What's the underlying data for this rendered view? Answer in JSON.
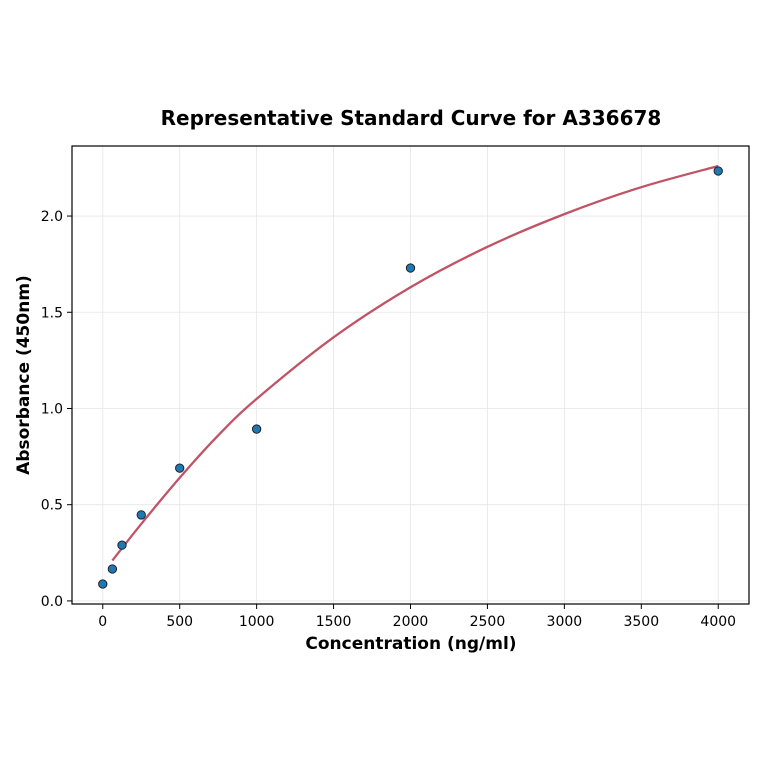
{
  "chart_data": {
    "type": "scatter",
    "title": "Representative Standard Curve for A336678",
    "xlabel": "Concentration (ng/ml)",
    "ylabel": "Absorbance (450nm)",
    "xlim": [
      -200,
      4200
    ],
    "ylim": [
      -0.016,
      2.364
    ],
    "grid": true,
    "x_ticks": [
      0,
      500,
      1000,
      1500,
      2000,
      2500,
      3000,
      3500,
      4000
    ],
    "x_tick_labels": [
      "0",
      "500",
      "1000",
      "1500",
      "2000",
      "2500",
      "3000",
      "3500",
      "4000"
    ],
    "y_ticks": [
      0,
      0.5,
      1.0,
      1.5,
      2.0
    ],
    "y_tick_labels": [
      "0.0",
      "0.5",
      "1.0",
      "1.5",
      "2.0"
    ],
    "points": {
      "x": [
        0,
        62.5,
        125,
        250,
        500,
        1000,
        2000,
        4000
      ],
      "y": [
        0.088,
        0.166,
        0.29,
        0.447,
        0.69,
        0.893,
        1.73,
        2.234
      ],
      "color": "#1f77b4"
    },
    "fit_curve": {
      "x": [
        62.5,
        250,
        500,
        750,
        1000,
        1500,
        2000,
        2500,
        3000,
        3500,
        4000
      ],
      "y": [
        0.21,
        0.4,
        0.64,
        0.86,
        1.05,
        1.37,
        1.63,
        1.84,
        2.01,
        2.15,
        2.26
      ],
      "color": "#c05466"
    }
  }
}
